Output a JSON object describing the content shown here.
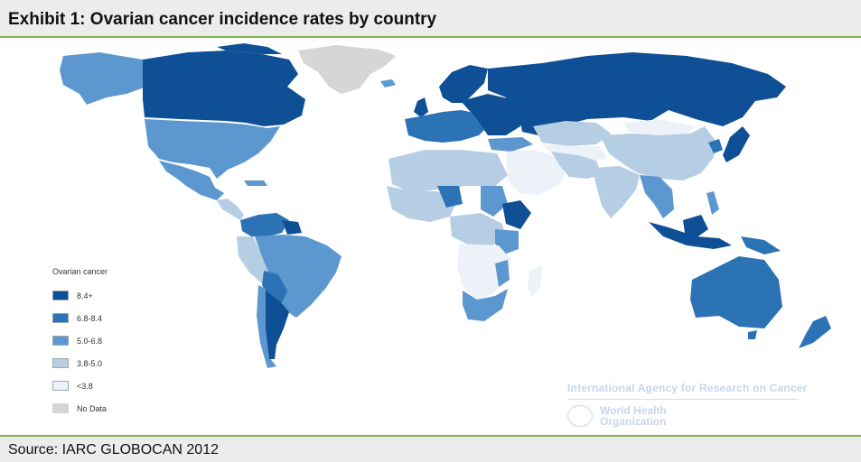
{
  "header": {
    "title": "Exhibit 1: Ovarian cancer incidence rates by country"
  },
  "footer": {
    "source": "Source: IARC GLOBOCAN 2012"
  },
  "legend": {
    "title": "Ovarian cancer",
    "items": [
      {
        "label": "8.4+",
        "color": "#0e4f95"
      },
      {
        "label": "6.8-8.4",
        "color": "#2c73b6"
      },
      {
        "label": "5.0-6.8",
        "color": "#5c98cf"
      },
      {
        "label": "3.8-5.0",
        "color": "#b5cee3"
      },
      {
        "label": "<3.8",
        "color": "#edf2f8"
      },
      {
        "label": "No Data",
        "color": "#d6d6d6"
      }
    ]
  },
  "watermark": {
    "agency": "International Agency for Research on Cancer",
    "who_line1": "World Health",
    "who_line2": "Organization"
  }
}
